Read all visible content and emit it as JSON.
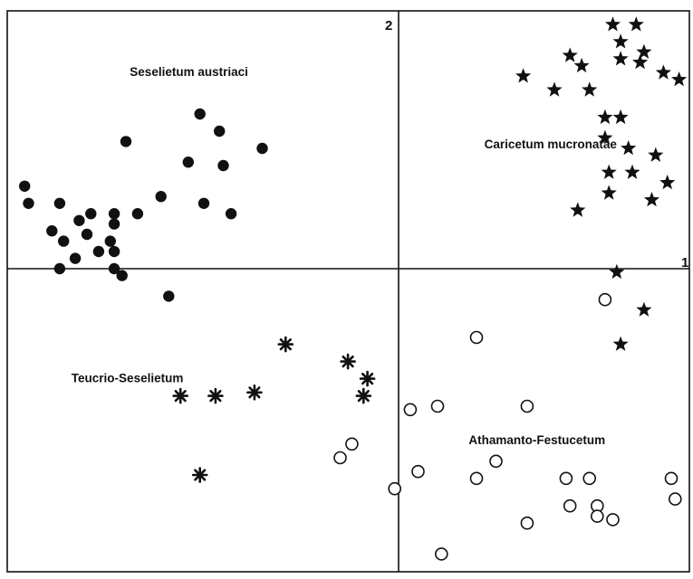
{
  "chart_data": {
    "type": "scatter",
    "title": "",
    "xlabel": "",
    "ylabel": "",
    "xlim": [
      -1.0,
      0.75
    ],
    "ylim": [
      -0.9,
      0.78
    ],
    "grid": false,
    "axis_labels": {
      "x_axis_number": "1",
      "y_axis_number": "2"
    },
    "groups": [
      {
        "label": "Seselietum austriaci",
        "marker": "filled-circle",
        "color": "#111111",
        "points": [
          [
            -0.96,
            0.24
          ],
          [
            -0.95,
            0.19
          ],
          [
            -0.87,
            0.19
          ],
          [
            -0.89,
            0.11
          ],
          [
            -0.86,
            0.08
          ],
          [
            -0.82,
            0.14
          ],
          [
            -0.8,
            0.1
          ],
          [
            -0.79,
            0.16
          ],
          [
            -0.83,
            0.03
          ],
          [
            -0.87,
            0.0
          ],
          [
            -0.77,
            0.05
          ],
          [
            -0.73,
            0.16
          ],
          [
            -0.73,
            0.13
          ],
          [
            -0.74,
            0.08
          ],
          [
            -0.73,
            0.05
          ],
          [
            -0.73,
            0.0
          ],
          [
            -0.71,
            -0.02
          ],
          [
            -0.67,
            0.16
          ],
          [
            -0.7,
            0.37
          ],
          [
            -0.61,
            0.21
          ],
          [
            -0.54,
            0.31
          ],
          [
            -0.5,
            0.19
          ],
          [
            -0.51,
            0.45
          ],
          [
            -0.46,
            0.4
          ],
          [
            -0.45,
            0.3
          ],
          [
            -0.43,
            0.16
          ],
          [
            -0.35,
            0.35
          ],
          [
            -0.59,
            -0.08
          ]
        ]
      },
      {
        "label": "Caricetum mucronatae",
        "marker": "filled-star",
        "color": "#111111",
        "points": [
          [
            0.55,
            0.71
          ],
          [
            0.61,
            0.71
          ],
          [
            0.57,
            0.66
          ],
          [
            0.44,
            0.62
          ],
          [
            0.47,
            0.59
          ],
          [
            0.57,
            0.61
          ],
          [
            0.63,
            0.63
          ],
          [
            0.62,
            0.6
          ],
          [
            0.68,
            0.57
          ],
          [
            0.72,
            0.55
          ],
          [
            0.32,
            0.56
          ],
          [
            0.4,
            0.52
          ],
          [
            0.49,
            0.52
          ],
          [
            0.53,
            0.44
          ],
          [
            0.57,
            0.44
          ],
          [
            0.53,
            0.38
          ],
          [
            0.59,
            0.35
          ],
          [
            0.66,
            0.33
          ],
          [
            0.54,
            0.28
          ],
          [
            0.6,
            0.28
          ],
          [
            0.69,
            0.25
          ],
          [
            0.54,
            0.22
          ],
          [
            0.65,
            0.2
          ],
          [
            0.46,
            0.17
          ],
          [
            0.56,
            -0.01
          ],
          [
            0.63,
            -0.12
          ],
          [
            0.57,
            -0.22
          ]
        ]
      },
      {
        "label": "Teucrio-Seselietum",
        "marker": "asterisk",
        "color": "#111111",
        "points": [
          [
            -0.29,
            -0.22
          ],
          [
            -0.13,
            -0.27
          ],
          [
            -0.08,
            -0.32
          ],
          [
            -0.37,
            -0.36
          ],
          [
            -0.09,
            -0.37
          ],
          [
            -0.56,
            -0.37
          ],
          [
            -0.47,
            -0.37
          ],
          [
            -0.51,
            -0.6
          ]
        ]
      },
      {
        "label": "Athamanto-Festucetum",
        "marker": "open-circle",
        "color": "#111111",
        "points": [
          [
            0.53,
            -0.09
          ],
          [
            0.2,
            -0.2
          ],
          [
            -0.12,
            -0.51
          ],
          [
            -0.15,
            -0.55
          ],
          [
            0.03,
            -0.41
          ],
          [
            0.1,
            -0.4
          ],
          [
            0.33,
            -0.4
          ],
          [
            0.05,
            -0.59
          ],
          [
            0.2,
            -0.61
          ],
          [
            0.25,
            -0.56
          ],
          [
            0.43,
            -0.61
          ],
          [
            0.49,
            -0.61
          ],
          [
            -0.01,
            -0.64
          ],
          [
            0.44,
            -0.69
          ],
          [
            0.51,
            -0.69
          ],
          [
            0.51,
            -0.72
          ],
          [
            0.55,
            -0.73
          ],
          [
            0.7,
            -0.61
          ],
          [
            0.71,
            -0.67
          ],
          [
            0.33,
            -0.74
          ],
          [
            0.11,
            -0.83
          ]
        ]
      }
    ],
    "annotations": [
      {
        "text": "Seselietum austriaci",
        "x": -0.69,
        "y": 0.56
      },
      {
        "text": "Caricetum mucronatae",
        "x": 0.22,
        "y": 0.35
      },
      {
        "text": "Teucrio-Seselietum",
        "x": -0.84,
        "y": -0.33
      },
      {
        "text": "Athamanto-Festucetum",
        "x": 0.18,
        "y": -0.51
      }
    ]
  }
}
